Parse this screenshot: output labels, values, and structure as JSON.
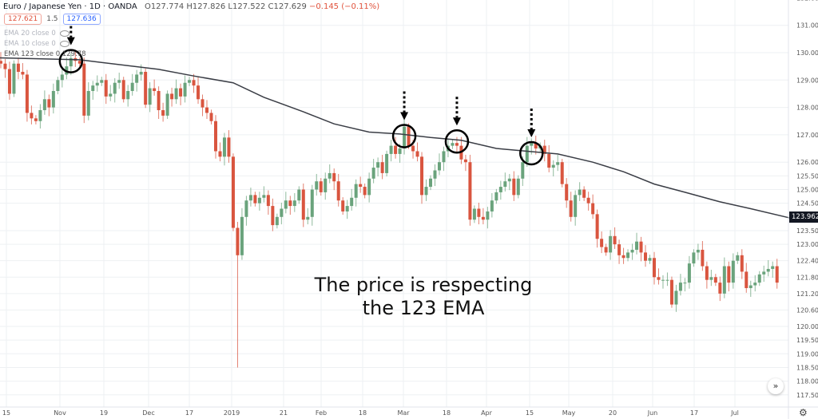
{
  "header": {
    "symbol": "Euro / Japanese Yen · 1D · OANDA",
    "ohlc": "O127.774 H127.826 L127.522 C127.629",
    "change": "−0.145 (−0.11%)",
    "sell_price": "127.621",
    "spread": "1.5",
    "buy_price": "127.636",
    "indicators": [
      "EMA 20 close 0",
      "EMA 10 close 0",
      "EMA 123 close 0  129.78"
    ]
  },
  "annotation": {
    "line1": "The price is respecting",
    "line2": "the 123 EMA"
  },
  "price_tag": "123.962",
  "colors": {
    "up": "#6aa37c",
    "down": "#d9553f",
    "ema": "#3a3d45",
    "grid": "#eef0f3",
    "annotation": "#000000"
  },
  "chart_data": {
    "type": "candlestick",
    "title": "Euro / Japanese Yen · 1D · OANDA",
    "ylim": [
      117.4,
      132.0
    ],
    "y_ticks": [
      "132.000",
      "131.000",
      "130.000",
      "129.000",
      "128.000",
      "127.000",
      "126.000",
      "125.500",
      "125.000",
      "124.500",
      "123.500",
      "123.000",
      "122.400",
      "121.800",
      "121.200",
      "120.600",
      "120.000",
      "119.500",
      "119.000",
      "118.500",
      "118.000",
      "117.500"
    ],
    "x_ticks": [
      "15",
      "Nov",
      "19",
      "Dec",
      "17",
      "2019",
      "21",
      "Feb",
      "18",
      "Mar",
      "18",
      "Apr",
      "15",
      "May",
      "20",
      "Jun",
      "17",
      "Jul"
    ],
    "grid": true,
    "closes": [
      129.5,
      129.7,
      129.6,
      129.4,
      128.5,
      129.6,
      129.3,
      129.2,
      127.8,
      127.6,
      127.5,
      127.9,
      128.3,
      128.0,
      128.6,
      129.0,
      129.2,
      129.5,
      129.8,
      129.7,
      129.6,
      127.7,
      128.6,
      128.8,
      128.9,
      129.0,
      128.4,
      128.5,
      128.9,
      129.0,
      128.3,
      128.6,
      128.9,
      129.2,
      129.3,
      128.1,
      128.7,
      128.6,
      127.9,
      127.7,
      128.5,
      128.3,
      128.7,
      128.4,
      128.9,
      129.0,
      128.8,
      128.3,
      128.0,
      127.8,
      127.5,
      126.4,
      126.2,
      126.9,
      126.2,
      123.6,
      122.6,
      124.0,
      124.6,
      124.8,
      124.5,
      124.7,
      124.8,
      124.4,
      123.7,
      124.0,
      124.3,
      124.6,
      124.4,
      124.6,
      125.0,
      123.9,
      124.0,
      125.0,
      125.3,
      124.9,
      125.4,
      125.6,
      125.3,
      124.6,
      124.2,
      124.4,
      124.7,
      125.2,
      125.1,
      124.8,
      125.4,
      125.8,
      126.0,
      125.6,
      126.3,
      126.6,
      126.3,
      126.5,
      127.3,
      126.6,
      126.4,
      126.2,
      124.8,
      125.1,
      125.4,
      125.7,
      126.0,
      126.4,
      126.6,
      126.7,
      126.6,
      126.1,
      126.0,
      123.9,
      124.3,
      124.0,
      123.9,
      124.2,
      124.6,
      124.9,
      125.1,
      125.3,
      125.4,
      124.8,
      125.4,
      126.0,
      126.6,
      126.7,
      126.5,
      126.6,
      126.3,
      125.8,
      125.9,
      126.0,
      125.2,
      124.6,
      124.0,
      124.8,
      125.0,
      124.7,
      124.5,
      124.1,
      123.2,
      122.9,
      122.7,
      123.3,
      123.0,
      122.6,
      122.5,
      122.7,
      122.8,
      123.1,
      122.7,
      122.4,
      122.5,
      121.8,
      121.7,
      121.7,
      121.7,
      120.8,
      121.3,
      121.6,
      121.6,
      122.3,
      122.7,
      122.8,
      122.2,
      121.7,
      121.8,
      121.6,
      121.2,
      122.2,
      121.6,
      122.4,
      122.6,
      122.0,
      121.4,
      121.5,
      121.6,
      121.9,
      122.0,
      122.1,
      122.2,
      121.6
    ],
    "extreme_lows": [
      {
        "i": 56,
        "low": 118.5
      }
    ],
    "ema_123": {
      "name": "EMA 123",
      "points": [
        [
          0,
          129.82
        ],
        [
          20,
          129.74
        ],
        [
          38,
          129.39
        ],
        [
          46,
          129.15
        ],
        [
          55,
          128.9
        ],
        [
          62,
          128.37
        ],
        [
          71,
          127.84
        ],
        [
          78,
          127.4
        ],
        [
          86,
          127.1
        ],
        [
          93,
          127.03
        ],
        [
          100,
          126.9
        ],
        [
          107,
          126.8
        ],
        [
          115,
          126.5
        ],
        [
          122,
          126.4
        ],
        [
          129,
          126.3
        ],
        [
          137,
          126.0
        ],
        [
          144,
          125.65
        ],
        [
          151,
          125.2
        ],
        [
          158,
          124.9
        ],
        [
          166,
          124.55
        ],
        [
          173,
          124.3
        ],
        [
          182,
          123.96
        ]
      ]
    },
    "marked_candles": [
      18,
      94,
      106,
      123
    ]
  }
}
